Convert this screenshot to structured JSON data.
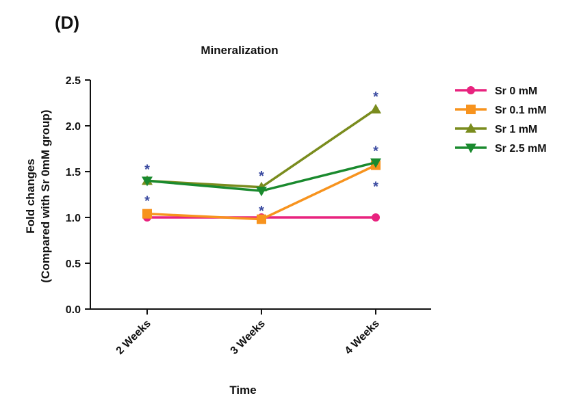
{
  "panel_label": "(D)",
  "chart_data": {
    "type": "line",
    "title": "Mineralization",
    "xlabel": "Time",
    "ylabel_line1": "Fold changes",
    "ylabel_line2": "(Compared with Sr 0mM group)",
    "categories": [
      "2 Weeks",
      "3 Weeks",
      "4 Weeks"
    ],
    "ylim": [
      0.0,
      2.5
    ],
    "yticks": [
      "0.0",
      "0.5",
      "1.0",
      "1.5",
      "2.0",
      "2.5"
    ],
    "legend_position": "right",
    "grid": false,
    "significance_marker": "*",
    "series": [
      {
        "name": "Sr 0 mM",
        "color": "#e8237f",
        "marker": "circle",
        "values": [
          1.0,
          1.0,
          1.0
        ],
        "stars": [
          false,
          false,
          false
        ]
      },
      {
        "name": "Sr 0.1 mM",
        "color": "#f7931e",
        "marker": "square",
        "values": [
          1.04,
          0.98,
          1.57
        ],
        "stars": [
          false,
          false,
          true
        ]
      },
      {
        "name": "Sr 1 mM",
        "color": "#7a8c1e",
        "marker": "triangle",
        "values": [
          1.4,
          1.33,
          2.18
        ],
        "stars": [
          true,
          true,
          true
        ]
      },
      {
        "name": "Sr 2.5 mM",
        "color": "#1a8a2e",
        "marker": "triangle-down",
        "values": [
          1.4,
          1.29,
          1.6
        ],
        "stars": [
          true,
          true,
          true
        ]
      }
    ]
  }
}
